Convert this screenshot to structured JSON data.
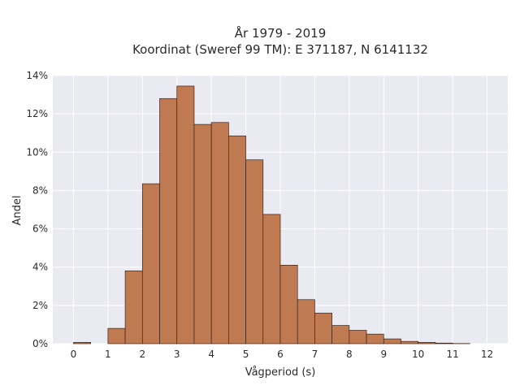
{
  "chart_data": {
    "type": "bar",
    "title": "År 1979 - 2019",
    "subtitle": "Koordinat (Sweref 99 TM): E 371187, N 6141132",
    "xlabel": "Vågperiod (s)",
    "ylabel": "Andel",
    "bin_width": 0.5,
    "bins_left_edge": [
      0,
      0.5,
      1,
      1.5,
      2,
      2.5,
      3,
      3.5,
      4,
      4.5,
      5,
      5.5,
      6,
      6.5,
      7,
      7.5,
      8,
      8.5,
      9,
      9.5,
      10,
      10.5,
      11,
      11.5
    ],
    "values": [
      0.07,
      0.0,
      0.8,
      3.8,
      8.35,
      12.8,
      13.45,
      11.45,
      11.55,
      10.85,
      9.6,
      6.75,
      4.1,
      2.3,
      1.6,
      0.95,
      0.7,
      0.5,
      0.25,
      0.12,
      0.07,
      0.03,
      0.01,
      0.0
    ],
    "xlim": [
      -0.6,
      12.6
    ],
    "ylim": [
      0,
      14
    ],
    "x_ticks": [
      0,
      1,
      2,
      3,
      4,
      5,
      6,
      7,
      8,
      9,
      10,
      11,
      12
    ],
    "y_ticks": [
      0,
      2,
      4,
      6,
      8,
      10,
      12,
      14
    ],
    "y_tick_format": "percent",
    "grid": true,
    "bar_color": "#c07a52",
    "bar_edge_color": "#3a2418",
    "background_color": "#eaeaf2"
  }
}
